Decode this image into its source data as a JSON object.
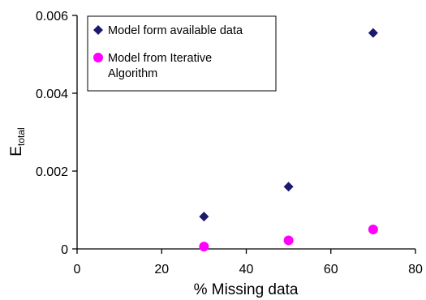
{
  "chart_data": {
    "type": "scatter",
    "xlabel": "% Missing data",
    "ylabel": "E",
    "ylabel_subscript": "total",
    "xlim": [
      0,
      80
    ],
    "ylim": [
      0,
      0.006
    ],
    "x_ticks": [
      "0",
      "20",
      "40",
      "60",
      "80"
    ],
    "y_ticks": [
      "0",
      "0.002",
      "0.004",
      "0.006"
    ],
    "grid": false,
    "legend_position": "top-left",
    "series": [
      {
        "name": "Model form available data",
        "marker": "diamond",
        "color": "#1a1a6e",
        "points": [
          {
            "x": 30,
            "y": 0.00083
          },
          {
            "x": 50,
            "y": 0.0016
          },
          {
            "x": 70,
            "y": 0.00555
          }
        ]
      },
      {
        "name": "Model from Iterative Algorithm",
        "name_lines": [
          "Model from Iterative",
          "Algorithm"
        ],
        "marker": "circle",
        "color": "#ff00ff",
        "points": [
          {
            "x": 30,
            "y": 6e-05
          },
          {
            "x": 50,
            "y": 0.00022
          },
          {
            "x": 70,
            "y": 0.0005
          }
        ]
      }
    ]
  }
}
